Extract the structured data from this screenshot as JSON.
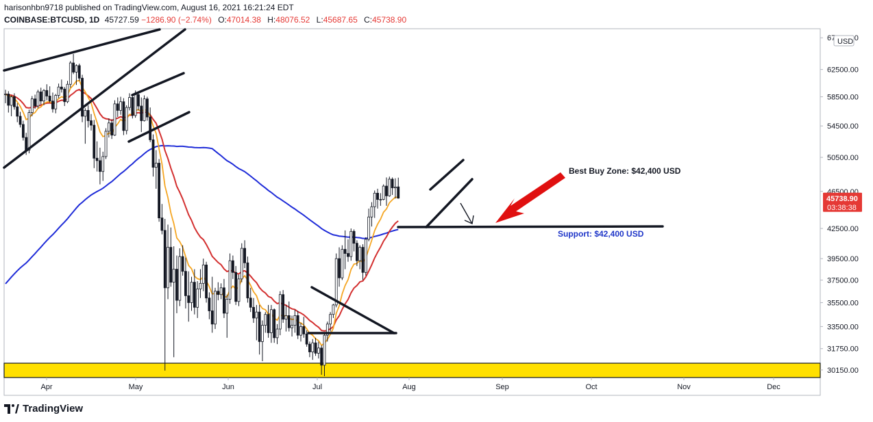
{
  "header": {
    "line1": "harisonhbn9718 published on TradingView.com, August 16, 2021 16:21:24 EDT",
    "symbol": "COINBASE:BTCUSD, 1D",
    "last": "45727.59",
    "change": "−1286.90 (−2.74%)",
    "open_label": "O:",
    "open": "47014.38",
    "high_label": "H:",
    "high": "48076.52",
    "low_label": "L:",
    "low": "45687.65",
    "close_label": "C:",
    "close": "45738.90"
  },
  "footer": {
    "brand": "TradingView"
  },
  "colors": {
    "bullish": "#26a69a",
    "bearish": "#ef5350",
    "candle": "#131722",
    "ema_fast": "#f5a623",
    "ema_mid": "#d32f2f",
    "ema_slow": "#1e2bd8",
    "support_zone": "#ffe000",
    "price_tag": "#e53935",
    "annotation_arrow": "#e01010",
    "support_text": "#1e35c8"
  },
  "chart_data": {
    "type": "candlestick",
    "y_scale": "log",
    "ylim": [
      29600,
      69000
    ],
    "currency_label": "USD",
    "y_ticks": [
      "67500.00",
      "62500.00",
      "58500.00",
      "54500.00",
      "50500.00",
      "46500.00",
      "42500.00",
      "39500.00",
      "37500.00",
      "35500.00",
      "33500.00",
      "31750.00",
      "30150.00"
    ],
    "x_ticks": [
      "Apr",
      "May",
      "Jun",
      "Jul",
      "Aug",
      "Sep",
      "Oct",
      "Nov",
      "Dec"
    ],
    "price_tag": {
      "value": "45738.90",
      "countdown": "03:38:38"
    },
    "annotations": {
      "best_buy": "Best Buy Zone: $42,400 USD",
      "support": "Support: $42,400 USD"
    },
    "support_level": 42400,
    "support_zone": [
      29600,
      30650
    ],
    "ohlc": [
      [
        58800,
        59500,
        57600,
        58900
      ],
      [
        58900,
        59300,
        56300,
        57300
      ],
      [
        57300,
        58700,
        55800,
        58500
      ],
      [
        58500,
        59000,
        56700,
        57100
      ],
      [
        57100,
        57600,
        55000,
        55800
      ],
      [
        55800,
        56400,
        54300,
        54700
      ],
      [
        54700,
        55200,
        52600,
        53000
      ],
      [
        53000,
        53600,
        50800,
        51400
      ],
      [
        51400,
        56700,
        51000,
        56300
      ],
      [
        56300,
        58600,
        55800,
        58200
      ],
      [
        58200,
        58800,
        56800,
        57200
      ],
      [
        57200,
        59500,
        56900,
        59200
      ],
      [
        59200,
        59800,
        57400,
        57900
      ],
      [
        57900,
        59600,
        57300,
        59400
      ],
      [
        59400,
        60300,
        58000,
        58600
      ],
      [
        58600,
        60000,
        57700,
        57900
      ],
      [
        57900,
        59100,
        56300,
        56800
      ],
      [
        56800,
        58900,
        56200,
        58700
      ],
      [
        58700,
        60400,
        58300,
        59900
      ],
      [
        59900,
        61000,
        59100,
        59600
      ],
      [
        59600,
        59900,
        57200,
        57800
      ],
      [
        57800,
        60800,
        57600,
        60300
      ],
      [
        60300,
        63800,
        59800,
        63500
      ],
      [
        63500,
        64900,
        61800,
        62100
      ],
      [
        62100,
        63300,
        60200,
        63100
      ],
      [
        63100,
        63400,
        60800,
        61200
      ],
      [
        61200,
        61700,
        55000,
        55800
      ],
      [
        55800,
        56900,
        52200,
        56600
      ],
      [
        56600,
        57300,
        54300,
        55200
      ],
      [
        55200,
        56100,
        53900,
        54600
      ],
      [
        54600,
        55300,
        49200,
        50400
      ],
      [
        50400,
        52500,
        48800,
        50100
      ],
      [
        50100,
        51700,
        47300,
        48800
      ],
      [
        48800,
        51200,
        47700,
        50600
      ],
      [
        50600,
        54200,
        50300,
        53800
      ],
      [
        53800,
        55500,
        53000,
        54900
      ],
      [
        54900,
        55400,
        52800,
        53300
      ],
      [
        53300,
        58000,
        53200,
        57500
      ],
      [
        57500,
        58400,
        55700,
        56600
      ],
      [
        56600,
        58500,
        56000,
        57800
      ],
      [
        57800,
        58300,
        53300,
        53900
      ],
      [
        53900,
        57300,
        53400,
        57000
      ],
      [
        57000,
        59000,
        56600,
        58400
      ],
      [
        58400,
        58900,
        55500,
        55900
      ],
      [
        55900,
        59400,
        55600,
        58800
      ],
      [
        58800,
        59200,
        56600,
        57200
      ],
      [
        57200,
        58400,
        53700,
        55200
      ],
      [
        55200,
        58700,
        55100,
        58200
      ],
      [
        58200,
        58500,
        55200,
        55700
      ],
      [
        55700,
        57000,
        52400,
        52700
      ],
      [
        52700,
        53400,
        48200,
        49300
      ],
      [
        49300,
        51400,
        46800,
        49800
      ],
      [
        49800,
        50300,
        43200,
        43600
      ],
      [
        43600,
        45100,
        41900,
        42300
      ],
      [
        42300,
        43500,
        30100,
        36800
      ],
      [
        36800,
        42900,
        35800,
        40600
      ],
      [
        40600,
        42600,
        36900,
        37300
      ],
      [
        37300,
        40700,
        31100,
        38500
      ],
      [
        38500,
        39800,
        34600,
        35700
      ],
      [
        35700,
        40500,
        35200,
        39700
      ],
      [
        39700,
        40800,
        37900,
        38300
      ],
      [
        38300,
        39600,
        35000,
        36100
      ],
      [
        36100,
        38300,
        33900,
        35500
      ],
      [
        35500,
        37800,
        34800,
        37300
      ],
      [
        37300,
        38500,
        34500,
        35100
      ],
      [
        35100,
        37400,
        34200,
        36700
      ],
      [
        36700,
        38500,
        35900,
        37200
      ],
      [
        37200,
        39500,
        36500,
        38900
      ],
      [
        38900,
        39200,
        35500,
        35900
      ],
      [
        35900,
        36400,
        34100,
        34800
      ],
      [
        34800,
        37800,
        33000,
        33700
      ],
      [
        33700,
        36800,
        33300,
        36500
      ],
      [
        36500,
        37300,
        35700,
        36200
      ],
      [
        36200,
        37200,
        35800,
        36800
      ],
      [
        36800,
        37600,
        34200,
        34600
      ],
      [
        34600,
        36200,
        32600,
        35800
      ],
      [
        35800,
        40000,
        35400,
        39300
      ],
      [
        39300,
        39800,
        37600,
        38200
      ],
      [
        38200,
        38800,
        35300,
        35600
      ],
      [
        35600,
        38000,
        35200,
        37600
      ],
      [
        37600,
        41000,
        37300,
        40500
      ],
      [
        40500,
        41300,
        38600,
        39100
      ],
      [
        39100,
        39700,
        35500,
        35900
      ],
      [
        35900,
        36800,
        34700,
        35100
      ],
      [
        35100,
        35900,
        33800,
        34200
      ],
      [
        34200,
        35300,
        32400,
        34700
      ],
      [
        34700,
        35300,
        31300,
        32300
      ],
      [
        32300,
        34000,
        30800,
        33600
      ],
      [
        33600,
        34700,
        33000,
        34500
      ],
      [
        34500,
        35300,
        32600,
        33000
      ],
      [
        33000,
        35300,
        32200,
        34900
      ],
      [
        34900,
        35000,
        32200,
        32600
      ],
      [
        32600,
        33700,
        32100,
        33300
      ],
      [
        33300,
        36500,
        32800,
        36200
      ],
      [
        36200,
        36600,
        33800,
        34100
      ],
      [
        34100,
        35300,
        33100,
        34400
      ],
      [
        34400,
        35600,
        33100,
        33400
      ],
      [
        33400,
        34400,
        32700,
        33600
      ],
      [
        33600,
        34900,
        33000,
        34400
      ],
      [
        34400,
        34800,
        32500,
        32800
      ],
      [
        32800,
        33800,
        32300,
        33500
      ],
      [
        33500,
        34300,
        32600,
        32900
      ],
      [
        32900,
        33200,
        31900,
        32100
      ],
      [
        32100,
        32300,
        31100,
        31500
      ],
      [
        31500,
        32500,
        30900,
        32200
      ],
      [
        32200,
        32600,
        31200,
        31400
      ],
      [
        31400,
        32300,
        31000,
        31800
      ],
      [
        31800,
        32000,
        29800,
        30500
      ],
      [
        30500,
        33000,
        29700,
        32800
      ],
      [
        32800,
        33900,
        32300,
        33700
      ],
      [
        33700,
        34700,
        33100,
        34500
      ],
      [
        34500,
        35400,
        34200,
        35300
      ],
      [
        35300,
        40000,
        35100,
        39500
      ],
      [
        39500,
        40600,
        36900,
        37700
      ],
      [
        37700,
        40800,
        37500,
        40400
      ],
      [
        40400,
        42300,
        38500,
        40000
      ],
      [
        40000,
        41400,
        39200,
        39700
      ],
      [
        39700,
        42500,
        39300,
        42200
      ],
      [
        42200,
        42400,
        40200,
        41000
      ],
      [
        41000,
        41300,
        38800,
        39300
      ],
      [
        39300,
        40800,
        38500,
        40600
      ],
      [
        40600,
        40900,
        37500,
        38200
      ],
      [
        38200,
        41600,
        37900,
        41400
      ],
      [
        41400,
        44600,
        41200,
        43700
      ],
      [
        43700,
        45300,
        42700,
        44800
      ],
      [
        44800,
        46600,
        43600,
        46300
      ],
      [
        46300,
        46800,
        44600,
        45600
      ],
      [
        45600,
        46300,
        44900,
        45600
      ],
      [
        45600,
        47300,
        45500,
        47100
      ],
      [
        47100,
        48100,
        44900,
        46000
      ],
      [
        46000,
        48200,
        45900,
        47900
      ],
      [
        47900,
        48100,
        46100,
        46900
      ],
      [
        46900,
        48000,
        45700,
        47000
      ],
      [
        47014,
        48076,
        45687,
        45739
      ]
    ]
  }
}
